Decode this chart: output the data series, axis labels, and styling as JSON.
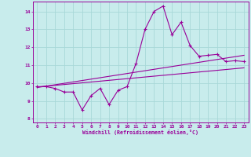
{
  "xlabel": "Windchill (Refroidissement éolien,°C)",
  "bg_color": "#c8ecec",
  "grid_color": "#a8d8d8",
  "line_color": "#990099",
  "xlim": [
    -0.5,
    23.5
  ],
  "ylim": [
    7.8,
    14.55
  ],
  "xticks": [
    0,
    1,
    2,
    3,
    4,
    5,
    6,
    7,
    8,
    9,
    10,
    11,
    12,
    13,
    14,
    15,
    16,
    17,
    18,
    19,
    20,
    21,
    22,
    23
  ],
  "yticks": [
    8,
    9,
    10,
    11,
    12,
    13,
    14
  ],
  "main_x": [
    0,
    1,
    2,
    3,
    4,
    5,
    6,
    7,
    8,
    9,
    10,
    11,
    12,
    13,
    14,
    15,
    16,
    17,
    18,
    19,
    20,
    21,
    22,
    23
  ],
  "main_y": [
    9.8,
    9.8,
    9.7,
    9.5,
    9.5,
    8.5,
    9.3,
    9.7,
    8.8,
    9.6,
    9.8,
    11.1,
    13.0,
    14.0,
    14.3,
    12.7,
    13.4,
    12.1,
    11.5,
    11.55,
    11.6,
    11.2,
    11.25,
    11.2
  ],
  "trend1_x": [
    0,
    23
  ],
  "trend1_y": [
    9.75,
    11.55
  ],
  "trend2_x": [
    0,
    23
  ],
  "trend2_y": [
    9.78,
    10.85
  ],
  "figsize": [
    3.2,
    2.0
  ],
  "dpi": 100
}
